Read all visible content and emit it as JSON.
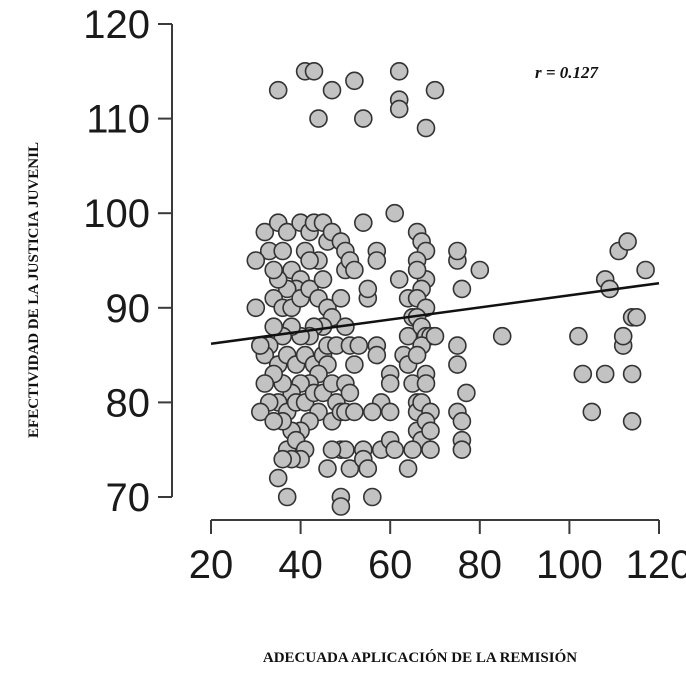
{
  "chart_data": {
    "type": "scatter",
    "xlabel": "ADECUADA APLICACIÓN DE LA REMISIÓN",
    "ylabel": "EFECTIVIDAD DE LA JUSTICIA JUVENIL",
    "annotation": "r = 0.127",
    "x_ticks": [
      "20",
      "40",
      "60",
      "80",
      "100",
      "120"
    ],
    "y_ticks": [
      "70",
      "80",
      "90",
      "100",
      "110",
      "120"
    ],
    "xlim": [
      20,
      120
    ],
    "ylim": [
      70,
      120
    ],
    "grid": false,
    "legend": "none",
    "colors": {
      "point_fill": "#c2c2c2",
      "point_stroke": "#333333",
      "line": "#111111",
      "axis": "#3a3a3a"
    },
    "trend_line": {
      "x": [
        20,
        120
      ],
      "y": [
        86.2,
        92.6
      ]
    },
    "points": [
      [
        35,
        113
      ],
      [
        41,
        115
      ],
      [
        43,
        115
      ],
      [
        44,
        110
      ],
      [
        47,
        113
      ],
      [
        52,
        114
      ],
      [
        54,
        110
      ],
      [
        62,
        115
      ],
      [
        62,
        112
      ],
      [
        62,
        111
      ],
      [
        68,
        109
      ],
      [
        70,
        113
      ],
      [
        32,
        98
      ],
      [
        33,
        96
      ],
      [
        35,
        99
      ],
      [
        37,
        98
      ],
      [
        36,
        96
      ],
      [
        38,
        94
      ],
      [
        40,
        99
      ],
      [
        42,
        98
      ],
      [
        41,
        96
      ],
      [
        43,
        99
      ],
      [
        45,
        99
      ],
      [
        46,
        97
      ],
      [
        47,
        98
      ],
      [
        44,
        95
      ],
      [
        42,
        95
      ],
      [
        40,
        93
      ],
      [
        39,
        92
      ],
      [
        37,
        92
      ],
      [
        35,
        93
      ],
      [
        34,
        94
      ],
      [
        34,
        91
      ],
      [
        36,
        90
      ],
      [
        38,
        90
      ],
      [
        40,
        91
      ],
      [
        42,
        92
      ],
      [
        44,
        91
      ],
      [
        45,
        93
      ],
      [
        46,
        90
      ],
      [
        47,
        89
      ],
      [
        45,
        88
      ],
      [
        43,
        88
      ],
      [
        42,
        87
      ],
      [
        40,
        87
      ],
      [
        38,
        88
      ],
      [
        36,
        87
      ],
      [
        34,
        88
      ],
      [
        33,
        86
      ],
      [
        32,
        85
      ],
      [
        35,
        84
      ],
      [
        37,
        85
      ],
      [
        39,
        84
      ],
      [
        41,
        85
      ],
      [
        43,
        84
      ],
      [
        45,
        85
      ],
      [
        46,
        84
      ],
      [
        44,
        83
      ],
      [
        42,
        82
      ],
      [
        40,
        82
      ],
      [
        38,
        81
      ],
      [
        36,
        82
      ],
      [
        34,
        83
      ],
      [
        35,
        80
      ],
      [
        37,
        79
      ],
      [
        39,
        80
      ],
      [
        41,
        80
      ],
      [
        43,
        81
      ],
      [
        45,
        81
      ],
      [
        44,
        79
      ],
      [
        42,
        78
      ],
      [
        40,
        77
      ],
      [
        38,
        77
      ],
      [
        36,
        78
      ],
      [
        37,
        75
      ],
      [
        39,
        76
      ],
      [
        41,
        75
      ],
      [
        40,
        74
      ],
      [
        38,
        74
      ],
      [
        36,
        74
      ],
      [
        35,
        72
      ],
      [
        37,
        70
      ],
      [
        47,
        82
      ],
      [
        46,
        86
      ],
      [
        48,
        86
      ],
      [
        48,
        80
      ],
      [
        47,
        78
      ],
      [
        30,
        95
      ],
      [
        31,
        86
      ],
      [
        32,
        82
      ],
      [
        33,
        80
      ],
      [
        31,
        79
      ],
      [
        34,
        78
      ],
      [
        30,
        90
      ],
      [
        49,
        97
      ],
      [
        50,
        96
      ],
      [
        50,
        94
      ],
      [
        51,
        95
      ],
      [
        52,
        94
      ],
      [
        49,
        91
      ],
      [
        50,
        88
      ],
      [
        51,
        86
      ],
      [
        53,
        86
      ],
      [
        52,
        84
      ],
      [
        50,
        82
      ],
      [
        51,
        81
      ],
      [
        49,
        79
      ],
      [
        50,
        79
      ],
      [
        52,
        79
      ],
      [
        49,
        75
      ],
      [
        50,
        75
      ],
      [
        47,
        75
      ],
      [
        46,
        73
      ],
      [
        51,
        73
      ],
      [
        49,
        70
      ],
      [
        49,
        69
      ],
      [
        56,
        70
      ],
      [
        54,
        99
      ],
      [
        57,
        96
      ],
      [
        57,
        95
      ],
      [
        55,
        91
      ],
      [
        55,
        92
      ],
      [
        57,
        86
      ],
      [
        57,
        85
      ],
      [
        60,
        83
      ],
      [
        60,
        82
      ],
      [
        58,
        80
      ],
      [
        56,
        79
      ],
      [
        60,
        79
      ],
      [
        58,
        75
      ],
      [
        54,
        75
      ],
      [
        54,
        74
      ],
      [
        55,
        73
      ],
      [
        60,
        76
      ],
      [
        61,
        75
      ],
      [
        61,
        100
      ],
      [
        62,
        93
      ],
      [
        64,
        91
      ],
      [
        65,
        89
      ],
      [
        64,
        87
      ],
      [
        63,
        85
      ],
      [
        64,
        84
      ],
      [
        65,
        82
      ],
      [
        66,
        80
      ],
      [
        66,
        79
      ],
      [
        66,
        77
      ],
      [
        67,
        76
      ],
      [
        65,
        75
      ],
      [
        64,
        73
      ],
      [
        66,
        98
      ],
      [
        67,
        97
      ],
      [
        68,
        96
      ],
      [
        66,
        95
      ],
      [
        68,
        93
      ],
      [
        67,
        92
      ],
      [
        66,
        91
      ],
      [
        68,
        90
      ],
      [
        66,
        89
      ],
      [
        67,
        88
      ],
      [
        68,
        87
      ],
      [
        69,
        87
      ],
      [
        67,
        86
      ],
      [
        66,
        85
      ],
      [
        68,
        83
      ],
      [
        68,
        82
      ],
      [
        67,
        80
      ],
      [
        69,
        79
      ],
      [
        68,
        78
      ],
      [
        69,
        77
      ],
      [
        69,
        75
      ],
      [
        66,
        94
      ],
      [
        70,
        87
      ],
      [
        75,
        95
      ],
      [
        75,
        96
      ],
      [
        76,
        92
      ],
      [
        80,
        94
      ],
      [
        75,
        86
      ],
      [
        75,
        84
      ],
      [
        77,
        81
      ],
      [
        75,
        79
      ],
      [
        76,
        78
      ],
      [
        76,
        76
      ],
      [
        76,
        75
      ],
      [
        85,
        87
      ],
      [
        102,
        87
      ],
      [
        103,
        83
      ],
      [
        105,
        79
      ],
      [
        108,
        93
      ],
      [
        109,
        92
      ],
      [
        108,
        83
      ],
      [
        111,
        96
      ],
      [
        113,
        97
      ],
      [
        112,
        86
      ],
      [
        112,
        87
      ],
      [
        114,
        89
      ],
      [
        114,
        83
      ],
      [
        115,
        89
      ],
      [
        114,
        78
      ],
      [
        117,
        94
      ]
    ]
  }
}
